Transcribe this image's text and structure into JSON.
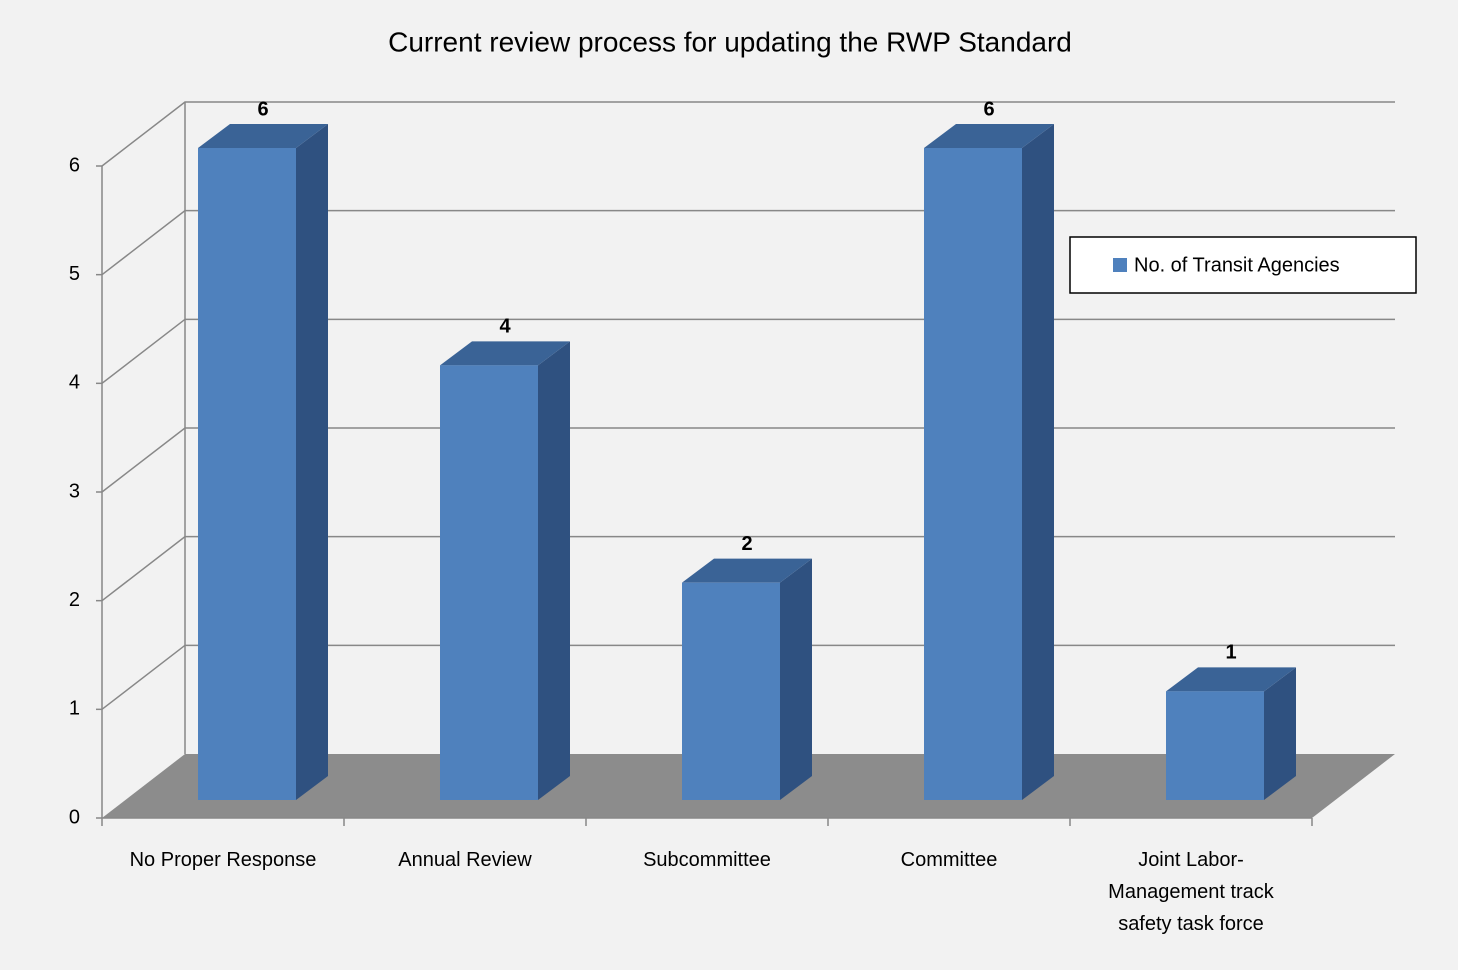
{
  "chart_data": {
    "type": "bar3d",
    "title": "Current review process for updating the RWP Standard",
    "categories": [
      "No Proper Response",
      "Annual Review",
      "Subcommittee",
      "Committee",
      "Joint Labor-Management track safety task force"
    ],
    "series": [
      {
        "name": "No. of Transit Agencies",
        "color": "#4f81bd",
        "values": [
          6,
          4,
          2,
          6,
          1
        ]
      }
    ],
    "ylim": [
      0,
      6
    ],
    "yticks": [
      0,
      1,
      2,
      3,
      4,
      5,
      6
    ],
    "grid": true,
    "legend": "right"
  }
}
